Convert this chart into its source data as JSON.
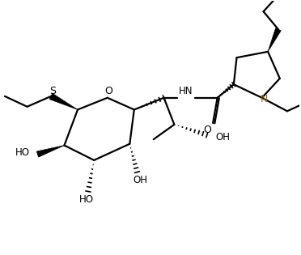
{
  "background_color": "#ffffff",
  "line_color": "#000000",
  "N_color": "#8B6914",
  "bond_lw": 1.6,
  "figsize": [
    3.72,
    3.15
  ],
  "dpi": 100,
  "xlim": [
    0,
    10
  ],
  "ylim": [
    0,
    8.5
  ]
}
